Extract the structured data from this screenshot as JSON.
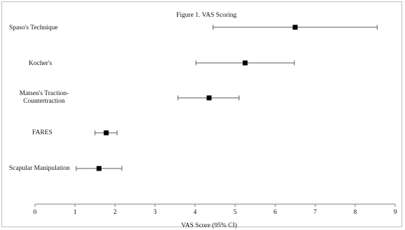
{
  "chart_data": {
    "type": "forest",
    "title": "Figure 1. VAS  Scoring",
    "xlabel": "VAS Score (95% CI)",
    "xlim": [
      0,
      9
    ],
    "xticks": [
      "0",
      "1",
      "2",
      "3",
      "4",
      "5",
      "6",
      "7",
      "8",
      "9"
    ],
    "grid": false,
    "series": [
      {
        "label": "Spaso's Technique",
        "mean": 6.5,
        "ci_low": 4.45,
        "ci_high": 8.55
      },
      {
        "label": "Kocher's",
        "mean": 5.25,
        "ci_low": 4.02,
        "ci_high": 6.48
      },
      {
        "label": "Matsen's Traction-Countertraction",
        "mean": 4.35,
        "ci_low": 3.57,
        "ci_high": 5.1
      },
      {
        "label": "FARES",
        "mean": 1.78,
        "ci_low": 1.5,
        "ci_high": 2.05
      },
      {
        "label": "Scapular Manipulation",
        "mean": 1.6,
        "ci_low": 1.03,
        "ci_high": 2.17
      }
    ],
    "colors": {
      "marker": "#000000",
      "line": "#595959",
      "axis": "#7f7f7f"
    }
  }
}
